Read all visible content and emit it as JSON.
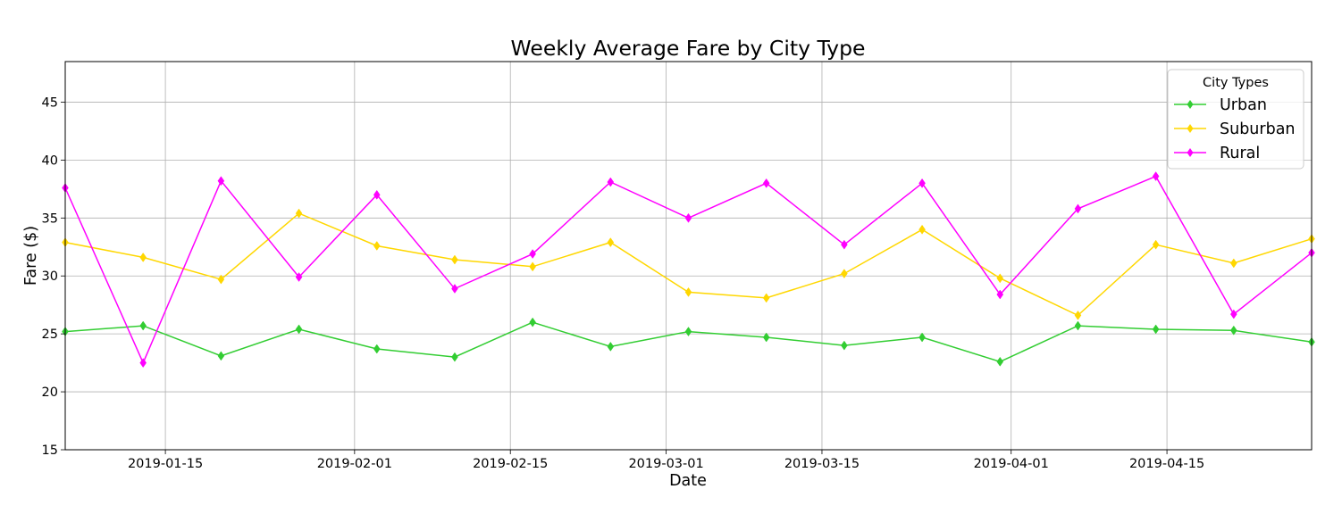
{
  "chart_data": {
    "type": "line",
    "title": "Weekly Average Fare by City Type",
    "xlabel": "Date",
    "ylabel": "Fare ($)",
    "x": [
      "2019-01-06",
      "2019-01-13",
      "2019-01-20",
      "2019-01-27",
      "2019-02-03",
      "2019-02-10",
      "2019-02-17",
      "2019-02-24",
      "2019-03-03",
      "2019-03-10",
      "2019-03-17",
      "2019-03-24",
      "2019-03-31",
      "2019-04-07",
      "2019-04-14",
      "2019-04-21",
      "2019-04-28"
    ],
    "xlim": [
      "2019-01-06",
      "2019-04-28"
    ],
    "ylim": [
      15,
      48.5
    ],
    "xticks": [
      "2019-01-15",
      "2019-02-01",
      "2019-02-15",
      "2019-03-01",
      "2019-03-15",
      "2019-04-01",
      "2019-04-15"
    ],
    "yticks": [
      15,
      20,
      25,
      30,
      35,
      40,
      45
    ],
    "grid": true,
    "legend": {
      "title": "City Types",
      "position": "top-right"
    },
    "series": [
      {
        "name": "Urban",
        "color": "#32cd32",
        "marker": "diamond",
        "values": [
          25.2,
          25.7,
          23.1,
          25.4,
          23.7,
          23.0,
          26.0,
          23.9,
          25.2,
          24.7,
          24.0,
          24.7,
          22.6,
          25.7,
          25.4,
          25.3,
          24.3
        ]
      },
      {
        "name": "Suburban",
        "color": "#ffd700",
        "marker": "diamond",
        "values": [
          32.9,
          31.6,
          29.7,
          35.4,
          32.6,
          31.4,
          30.8,
          32.9,
          28.6,
          28.1,
          30.2,
          34.0,
          29.8,
          26.6,
          32.7,
          31.1,
          33.2
        ]
      },
      {
        "name": "Rural",
        "color": "#ff00ff",
        "marker": "diamond",
        "values": [
          37.6,
          22.5,
          38.2,
          29.9,
          37.0,
          28.9,
          31.9,
          38.1,
          35.0,
          38.0,
          32.7,
          38.0,
          28.4,
          35.8,
          38.6,
          26.7,
          32.0
        ]
      }
    ]
  }
}
